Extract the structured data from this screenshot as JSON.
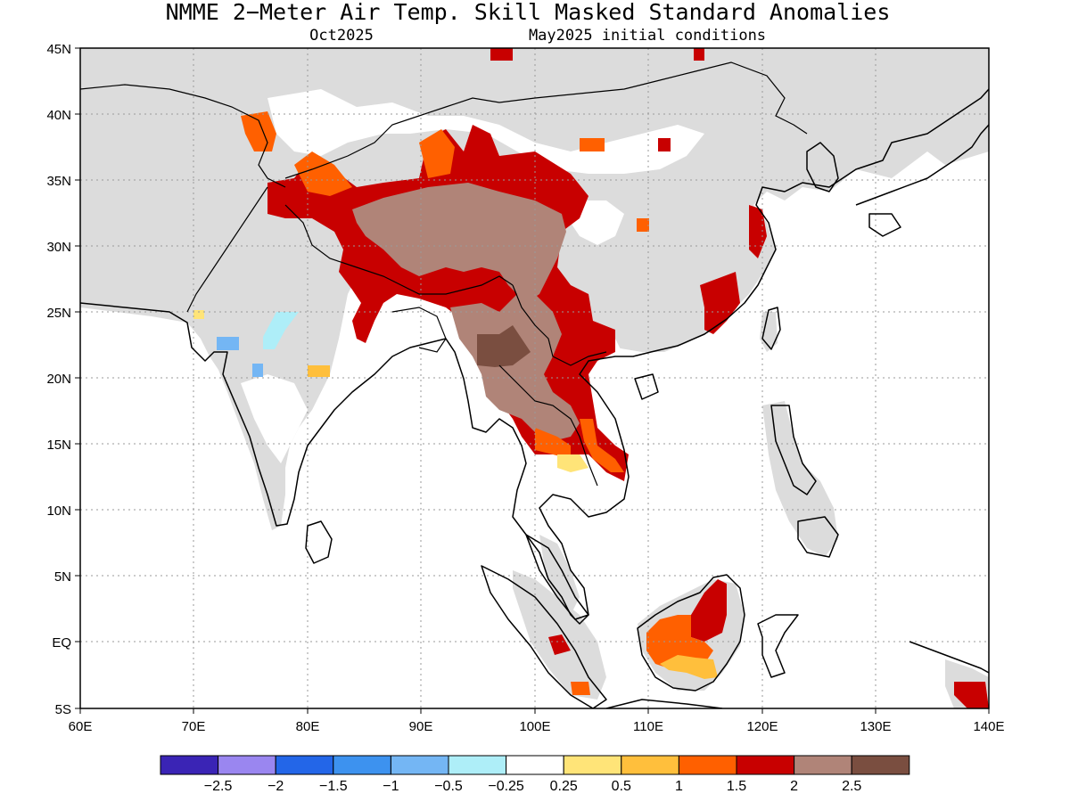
{
  "title": "NMME 2−Meter Air Temp. Skill Masked Standard Anomalies",
  "subtitle_left": "Oct2025",
  "subtitle_right": "May2025 initial conditions",
  "map": {
    "lon_ticks": [
      "60E",
      "70E",
      "80E",
      "90E",
      "100E",
      "110E",
      "120E",
      "130E",
      "140E"
    ],
    "lat_ticks": [
      "45N",
      "40N",
      "35N",
      "30N",
      "25N",
      "20N",
      "15N",
      "10N",
      "5N",
      "EQ",
      "5S"
    ],
    "colors": {
      "masked": "#dcdcdc",
      "land_line": "#000000",
      "grid": "#9a9a9a"
    }
  },
  "colorbar": {
    "colors": [
      "#3a24b5",
      "#9a86f0",
      "#2366e8",
      "#3d92ef",
      "#74b6f4",
      "#aeeef8",
      "#ffffff",
      "#ffe478",
      "#ffbf3c",
      "#ff6000",
      "#c80000",
      "#b08478",
      "#7a4e40"
    ],
    "labels": [
      "−2.5",
      "−2",
      "−1.5",
      "−1",
      "−0.5",
      "−0.25",
      "0.25",
      "0.5",
      "1",
      "1.5",
      "2",
      "2.5"
    ]
  },
  "anomaly_regions": [
    {
      "name": "tibet-plateau",
      "level": "2.5"
    },
    {
      "name": "tibet-rim",
      "level": "2"
    },
    {
      "name": "yunnan-core",
      "level": "> 2.5"
    },
    {
      "name": "indochina-core",
      "level": "2.5"
    },
    {
      "name": "indochina-rim",
      "level": "2"
    },
    {
      "name": "borneo-core",
      "level": "2"
    },
    {
      "name": "borneo-rim",
      "level": "1.5"
    },
    {
      "name": "india-neg-patch",
      "level": "−1"
    }
  ]
}
